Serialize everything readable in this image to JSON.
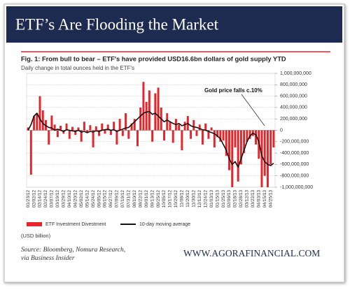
{
  "banner": {
    "title": "ETF’s Are Flooding the Market"
  },
  "chart_data": {
    "type": "bar",
    "title": "Fig. 1: From bull to bear – ETF's have provided USD16.6bn dollars of gold supply YTD",
    "subtitle": "Daily change in total ounces held in the ETF's",
    "annotation": "Gold price falls c.10%",
    "unit_note": "(USD billion)",
    "categories": [
      "01/23/12",
      null,
      "02/02/12",
      null,
      "02/14/12",
      null,
      "02/24/12",
      null,
      "03/07/12",
      null,
      "03/19/12",
      null,
      "03/29/12",
      null,
      "04/10/12",
      null,
      "04/20/12",
      null,
      "05/02/12",
      null,
      "05/14/12",
      null,
      "05/24/12",
      null,
      "06/05/12",
      null,
      "06/15/12",
      null,
      "06/27/12",
      null,
      "07/09/12",
      null,
      "07/19/12",
      null,
      "07/31/12",
      null,
      "08/10/12",
      null,
      "08/22/12",
      null,
      "09/01/12",
      null,
      "09/13/12",
      null,
      "09/25/12",
      null,
      "10/05/12",
      null,
      "10/17/12",
      null,
      "10/29/12",
      null,
      "11/08/12",
      null,
      "11/20/12",
      null,
      "11/30/12",
      null,
      "12/12/12",
      null,
      "12/24/12",
      null,
      "01/03/13",
      null,
      "01/15/13",
      null,
      "01/25/13",
      null,
      "02/06/13",
      null,
      "02/18/13",
      null,
      "02/28/13",
      null,
      "03/12/13",
      null,
      "03/22/13",
      null,
      "04/03/13",
      null,
      "04/15/13",
      null,
      "04/25/13",
      null
    ],
    "series": [
      {
        "name": "ETF Investment Divestment",
        "color": "#e8242b",
        "kind": "bar",
        "values": [
          50000000,
          -780000000,
          250000000,
          300000000,
          600000000,
          350000000,
          180000000,
          -250000000,
          260000000,
          100000000,
          -120000000,
          80000000,
          -60000000,
          120000000,
          -150000000,
          60000000,
          -80000000,
          50000000,
          -200000000,
          150000000,
          -50000000,
          90000000,
          -300000000,
          70000000,
          -100000000,
          120000000,
          -60000000,
          100000000,
          -80000000,
          150000000,
          -250000000,
          200000000,
          -100000000,
          300000000,
          -150000000,
          120000000,
          200000000,
          -280000000,
          400000000,
          850000000,
          500000000,
          700000000,
          -200000000,
          650000000,
          750000000,
          400000000,
          -180000000,
          300000000,
          150000000,
          -220000000,
          200000000,
          100000000,
          -350000000,
          150000000,
          250000000,
          -150000000,
          180000000,
          -100000000,
          100000000,
          -250000000,
          120000000,
          -150000000,
          50000000,
          -300000000,
          -120000000,
          -200000000,
          -180000000,
          -450000000,
          -700000000,
          -1000000000,
          -300000000,
          -900000000,
          -600000000,
          -400000000,
          -200000000,
          -150000000,
          -100000000,
          -250000000,
          -500000000,
          -1000000000,
          -800000000,
          -1000000000,
          -600000000,
          -300000000
        ]
      },
      {
        "name": "10-day moving average",
        "color": "#111111",
        "kind": "line",
        "values": [
          0,
          100000000,
          250000000,
          300000000,
          200000000,
          120000000,
          80000000,
          50000000,
          40000000,
          0,
          20000000,
          0,
          -20000000,
          10000000,
          0,
          -10000000,
          -20000000,
          0,
          -30000000,
          -20000000,
          -40000000,
          -20000000,
          -30000000,
          -10000000,
          -20000000,
          0,
          10000000,
          20000000,
          0,
          10000000,
          -20000000,
          0,
          20000000,
          40000000,
          50000000,
          100000000,
          150000000,
          200000000,
          250000000,
          300000000,
          320000000,
          330000000,
          280000000,
          300000000,
          250000000,
          200000000,
          150000000,
          180000000,
          150000000,
          120000000,
          100000000,
          120000000,
          80000000,
          100000000,
          120000000,
          80000000,
          60000000,
          50000000,
          30000000,
          10000000,
          0,
          -20000000,
          -40000000,
          -60000000,
          -100000000,
          -150000000,
          -250000000,
          -350000000,
          -500000000,
          -600000000,
          -550000000,
          -650000000,
          -500000000,
          -350000000,
          -200000000,
          -100000000,
          -50000000,
          -80000000,
          -200000000,
          -450000000,
          -550000000,
          -600000000,
          -620000000,
          -580000000
        ]
      }
    ],
    "ylim": [
      -1000000000,
      1000000000
    ],
    "yticks": [
      {
        "value": 1000000000,
        "label": "1,000,000,000"
      },
      {
        "value": 800000000,
        "label": "800,000,000"
      },
      {
        "value": 600000000,
        "label": "600,000,000"
      },
      {
        "value": 400000000,
        "label": "400,000,000"
      },
      {
        "value": 200000000,
        "label": "200,000,000"
      },
      0,
      {
        "value": -200000000,
        "label": "-200,000,000"
      },
      {
        "value": -400000000,
        "label": "-400,000,000"
      },
      {
        "value": -600000000,
        "label": "-600,000,000"
      },
      {
        "value": -800000000,
        "label": "-800,000,000"
      },
      {
        "value": -1000000000,
        "label": "-1,000,000,000"
      }
    ],
    "grid": true
  },
  "footer": {
    "source": [
      "Source: Bloomberg, Nomura Research,",
      "via Business Insider"
    ],
    "site": "WWW.AGORAFINANCIAL.COM"
  }
}
